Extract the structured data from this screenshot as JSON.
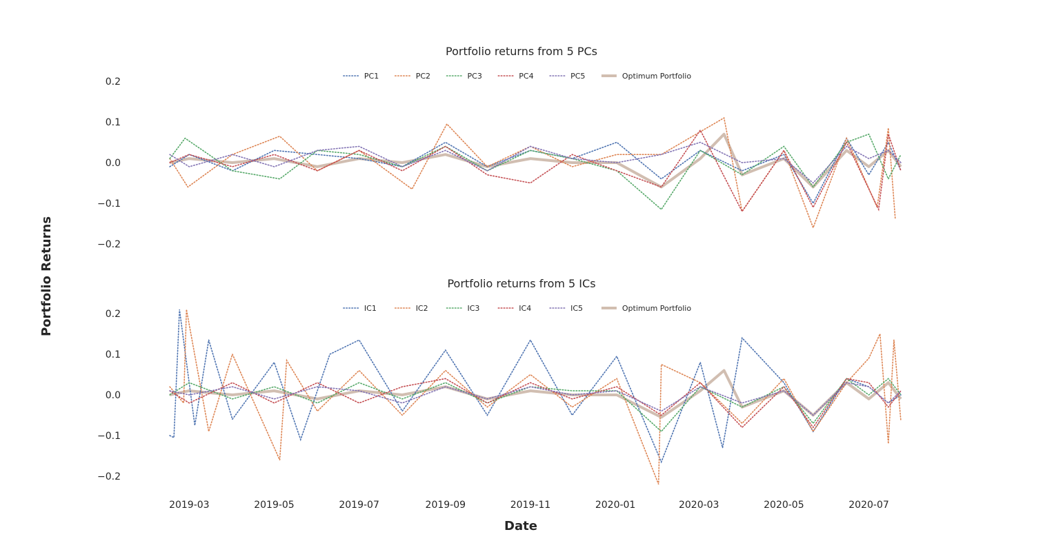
{
  "figure": {
    "xlabel": "Date",
    "ylabel": "Portfolio Returns"
  },
  "colors": {
    "series1": "#4c72b0",
    "series2": "#dd8452",
    "series3": "#55a868",
    "series4": "#c44e52",
    "series5": "#8172b3",
    "optimum": "#c9b3a3"
  },
  "chart_data": [
    {
      "type": "line",
      "title": "Portfolio returns from 5 PCs",
      "xlabel": "Date",
      "ylabel": "Portfolio Returns",
      "xlim": [
        "2019-02-12",
        "2020-07-26"
      ],
      "ylim": [
        -0.2,
        0.2
      ],
      "yticks": [
        -0.2,
        -0.1,
        0.0,
        0.1,
        0.2
      ],
      "ytick_labels": [
        "−0.2",
        "−0.1",
        "0.0",
        "0.1",
        "0.2"
      ],
      "xticks": [
        "2019-03-01",
        "2019-05-01",
        "2019-07-01",
        "2019-09-01",
        "2019-11-01",
        "2020-01-01",
        "2020-03-01",
        "2020-05-01",
        "2020-07-01"
      ],
      "xtick_labels": [
        "2019-03",
        "2019-05",
        "2019-07",
        "2019-09",
        "2019-11",
        "2020-01",
        "2020-03",
        "2020-05",
        "2020-07"
      ],
      "grid": false,
      "legend": "top-center",
      "series": [
        {
          "name": "PC1",
          "style": "dotted",
          "x": [
            "2019-02-15",
            "2019-03-01",
            "2019-04-01",
            "2019-05-01",
            "2019-06-01",
            "2019-07-01",
            "2019-08-01",
            "2019-09-01",
            "2019-10-01",
            "2019-11-01",
            "2019-12-01",
            "2020-01-02",
            "2020-02-03",
            "2020-03-02",
            "2020-04-01",
            "2020-05-01",
            "2020-05-22",
            "2020-06-15",
            "2020-07-01",
            "2020-07-15",
            "2020-07-24"
          ],
          "values": [
            -0.01,
            0.02,
            -0.02,
            0.03,
            0.02,
            0.01,
            -0.01,
            0.05,
            -0.01,
            0.03,
            0.01,
            0.05,
            -0.04,
            0.03,
            -0.02,
            0.02,
            -0.1,
            0.06,
            -0.03,
            0.05,
            -0.02
          ]
        },
        {
          "name": "PC2",
          "style": "dotted",
          "x": [
            "2019-02-15",
            "2019-02-28",
            "2019-04-01",
            "2019-05-05",
            "2019-06-01",
            "2019-07-01",
            "2019-08-08",
            "2019-09-02",
            "2019-10-01",
            "2019-11-01",
            "2019-12-01",
            "2020-01-02",
            "2020-02-03",
            "2020-03-19",
            "2020-04-01",
            "2020-05-01",
            "2020-05-22",
            "2020-06-15",
            "2020-07-07",
            "2020-07-15",
            "2020-07-20"
          ],
          "values": [
            0.01,
            -0.06,
            0.02,
            0.065,
            -0.02,
            0.03,
            -0.065,
            0.095,
            -0.01,
            0.04,
            -0.01,
            0.02,
            0.02,
            0.11,
            -0.12,
            0.03,
            -0.16,
            0.06,
            -0.11,
            0.085,
            -0.14
          ]
        },
        {
          "name": "PC3",
          "style": "dotted",
          "x": [
            "2019-02-15",
            "2019-02-26",
            "2019-04-01",
            "2019-05-05",
            "2019-06-01",
            "2019-07-01",
            "2019-08-01",
            "2019-09-01",
            "2019-10-01",
            "2019-11-01",
            "2019-12-01",
            "2020-01-02",
            "2020-02-03",
            "2020-03-02",
            "2020-04-01",
            "2020-05-01",
            "2020-05-22",
            "2020-06-15",
            "2020-07-01",
            "2020-07-15",
            "2020-07-24"
          ],
          "values": [
            0.01,
            0.06,
            -0.02,
            -0.04,
            0.03,
            0.02,
            -0.01,
            0.04,
            -0.02,
            0.03,
            0.01,
            -0.02,
            -0.115,
            0.03,
            -0.03,
            0.04,
            -0.06,
            0.05,
            0.07,
            -0.04,
            0.02
          ]
        },
        {
          "name": "PC4",
          "style": "dotted",
          "x": [
            "2019-02-15",
            "2019-03-01",
            "2019-04-01",
            "2019-05-01",
            "2019-06-01",
            "2019-07-01",
            "2019-08-01",
            "2019-09-01",
            "2019-10-01",
            "2019-11-01",
            "2019-12-01",
            "2020-01-02",
            "2020-02-03",
            "2020-03-02",
            "2020-04-01",
            "2020-05-01",
            "2020-05-22",
            "2020-06-15",
            "2020-07-08",
            "2020-07-15",
            "2020-07-24"
          ],
          "values": [
            0.0,
            0.02,
            -0.01,
            0.02,
            -0.02,
            0.03,
            -0.02,
            0.04,
            -0.03,
            -0.05,
            0.02,
            -0.02,
            -0.06,
            0.08,
            -0.12,
            0.03,
            -0.11,
            0.05,
            -0.115,
            0.07,
            -0.02
          ]
        },
        {
          "name": "PC5",
          "style": "dotted",
          "x": [
            "2019-02-15",
            "2019-03-01",
            "2019-04-01",
            "2019-05-01",
            "2019-06-01",
            "2019-07-01",
            "2019-08-01",
            "2019-09-01",
            "2019-10-01",
            "2019-11-01",
            "2019-12-01",
            "2020-01-02",
            "2020-02-03",
            "2020-03-02",
            "2020-04-01",
            "2020-05-01",
            "2020-05-22",
            "2020-06-15",
            "2020-07-01",
            "2020-07-15",
            "2020-07-24"
          ],
          "values": [
            0.02,
            -0.01,
            0.02,
            -0.01,
            0.03,
            0.04,
            -0.01,
            0.03,
            -0.02,
            0.04,
            0.01,
            0.0,
            0.02,
            0.05,
            0.0,
            0.01,
            -0.05,
            0.04,
            0.01,
            0.03,
            0.0
          ]
        },
        {
          "name": "Optimum Portfolio",
          "style": "solid",
          "x": [
            "2019-02-15",
            "2019-03-01",
            "2019-04-01",
            "2019-05-01",
            "2019-06-01",
            "2019-07-01",
            "2019-08-01",
            "2019-09-01",
            "2019-10-01",
            "2019-11-01",
            "2019-12-01",
            "2020-01-02",
            "2020-02-03",
            "2020-03-02",
            "2020-03-19",
            "2020-04-01",
            "2020-05-01",
            "2020-05-22",
            "2020-06-15",
            "2020-07-01",
            "2020-07-15",
            "2020-07-24"
          ],
          "values": [
            0.0,
            0.01,
            0.0,
            0.01,
            -0.01,
            0.01,
            0.0,
            0.02,
            -0.01,
            0.01,
            0.0,
            0.0,
            -0.06,
            0.01,
            0.07,
            -0.03,
            0.01,
            -0.06,
            0.03,
            -0.01,
            0.03,
            -0.01
          ]
        }
      ]
    },
    {
      "type": "line",
      "title": "Portfolio returns from 5 ICs",
      "xlabel": "Date",
      "ylabel": "Portfolio Returns",
      "xlim": [
        "2019-02-12",
        "2020-07-26"
      ],
      "ylim": [
        -0.2,
        0.2
      ],
      "yticks": [
        -0.2,
        -0.1,
        0.0,
        0.1,
        0.2
      ],
      "ytick_labels": [
        "−0.2",
        "−0.1",
        "0.0",
        "0.1",
        "0.2"
      ],
      "xticks": [
        "2019-03-01",
        "2019-05-01",
        "2019-07-01",
        "2019-09-01",
        "2019-11-01",
        "2020-01-01",
        "2020-03-01",
        "2020-05-01",
        "2020-07-01"
      ],
      "xtick_labels": [
        "2019-03",
        "2019-05",
        "2019-07",
        "2019-09",
        "2019-11",
        "2020-01",
        "2020-03",
        "2020-05",
        "2020-07"
      ],
      "grid": false,
      "legend": "top-center",
      "series": [
        {
          "name": "IC1",
          "style": "dotted",
          "x": [
            "2019-02-15",
            "2019-02-18",
            "2019-02-22",
            "2019-03-05",
            "2019-03-15",
            "2019-04-01",
            "2019-05-01",
            "2019-05-20",
            "2019-06-10",
            "2019-07-01",
            "2019-08-01",
            "2019-09-01",
            "2019-10-01",
            "2019-11-01",
            "2019-12-01",
            "2020-01-02",
            "2020-02-03",
            "2020-03-02",
            "2020-03-18",
            "2020-04-01",
            "2020-05-01",
            "2020-05-22",
            "2020-06-15",
            "2020-07-01",
            "2020-07-15",
            "2020-07-24"
          ],
          "values": [
            -0.1,
            -0.105,
            0.21,
            -0.075,
            0.135,
            -0.06,
            0.08,
            -0.11,
            0.1,
            0.135,
            -0.04,
            0.11,
            -0.05,
            0.135,
            -0.05,
            0.095,
            -0.165,
            0.08,
            -0.13,
            0.14,
            0.03,
            -0.09,
            0.04,
            0.02,
            -0.02,
            0.0
          ]
        },
        {
          "name": "IC2",
          "style": "dotted",
          "x": [
            "2019-02-15",
            "2019-02-25",
            "2019-02-27",
            "2019-03-15",
            "2019-04-01",
            "2019-05-05",
            "2019-05-10",
            "2019-06-01",
            "2019-07-01",
            "2019-08-01",
            "2019-09-01",
            "2019-10-01",
            "2019-11-01",
            "2019-12-01",
            "2020-01-02",
            "2020-02-01",
            "2020-02-03",
            "2020-03-02",
            "2020-04-01",
            "2020-05-01",
            "2020-05-22",
            "2020-06-15",
            "2020-07-01",
            "2020-07-09",
            "2020-07-15",
            "2020-07-19",
            "2020-07-24"
          ],
          "values": [
            0.02,
            -0.02,
            0.21,
            -0.09,
            0.1,
            -0.16,
            0.085,
            -0.04,
            0.06,
            -0.05,
            0.06,
            -0.03,
            0.05,
            -0.03,
            0.04,
            -0.22,
            0.075,
            0.03,
            -0.07,
            0.04,
            -0.09,
            0.03,
            0.09,
            0.15,
            -0.12,
            0.135,
            -0.065
          ]
        },
        {
          "name": "IC3",
          "style": "dotted",
          "x": [
            "2019-02-15",
            "2019-03-01",
            "2019-04-01",
            "2019-05-01",
            "2019-06-01",
            "2019-07-01",
            "2019-08-01",
            "2019-09-01",
            "2019-10-01",
            "2019-11-01",
            "2019-12-01",
            "2020-01-02",
            "2020-02-03",
            "2020-03-02",
            "2020-04-01",
            "2020-05-01",
            "2020-05-22",
            "2020-06-15",
            "2020-07-01",
            "2020-07-15",
            "2020-07-24"
          ],
          "values": [
            0.0,
            0.03,
            -0.01,
            0.02,
            -0.02,
            0.03,
            -0.01,
            0.03,
            -0.02,
            0.02,
            0.01,
            0.01,
            -0.09,
            0.02,
            -0.03,
            0.02,
            -0.07,
            0.04,
            0.0,
            0.04,
            0.0
          ]
        },
        {
          "name": "IC4",
          "style": "dotted",
          "x": [
            "2019-02-15",
            "2019-03-01",
            "2019-04-01",
            "2019-05-01",
            "2019-06-01",
            "2019-07-01",
            "2019-08-01",
            "2019-09-01",
            "2019-10-01",
            "2019-11-01",
            "2019-12-01",
            "2020-01-02",
            "2020-02-03",
            "2020-03-02",
            "2020-04-01",
            "2020-05-01",
            "2020-05-22",
            "2020-06-15",
            "2020-07-01",
            "2020-07-15",
            "2020-07-24"
          ],
          "values": [
            0.01,
            -0.02,
            0.03,
            -0.02,
            0.03,
            -0.02,
            0.02,
            0.04,
            -0.02,
            0.03,
            -0.01,
            0.02,
            -0.05,
            0.03,
            -0.08,
            0.02,
            -0.08,
            0.04,
            0.03,
            -0.03,
            0.01
          ]
        },
        {
          "name": "IC5",
          "style": "dotted",
          "x": [
            "2019-02-15",
            "2019-03-01",
            "2019-04-01",
            "2019-05-01",
            "2019-06-01",
            "2019-07-01",
            "2019-08-01",
            "2019-09-01",
            "2019-10-01",
            "2019-11-01",
            "2019-12-01",
            "2020-01-02",
            "2020-02-03",
            "2020-03-02",
            "2020-04-01",
            "2020-05-01",
            "2020-05-22",
            "2020-06-15",
            "2020-07-01",
            "2020-07-15",
            "2020-07-24"
          ],
          "values": [
            0.01,
            0.0,
            0.02,
            -0.01,
            0.02,
            0.01,
            -0.02,
            0.02,
            -0.01,
            0.02,
            0.0,
            0.01,
            -0.04,
            0.02,
            -0.02,
            0.01,
            -0.05,
            0.03,
            0.02,
            -0.02,
            0.01
          ]
        },
        {
          "name": "Optimum Portfolio",
          "style": "solid",
          "x": [
            "2019-02-15",
            "2019-03-01",
            "2019-04-01",
            "2019-05-01",
            "2019-06-01",
            "2019-07-01",
            "2019-08-01",
            "2019-09-01",
            "2019-10-01",
            "2019-11-01",
            "2019-12-01",
            "2020-01-02",
            "2020-02-03",
            "2020-03-02",
            "2020-03-19",
            "2020-04-01",
            "2020-05-01",
            "2020-05-22",
            "2020-06-15",
            "2020-07-01",
            "2020-07-15",
            "2020-07-24"
          ],
          "values": [
            0.0,
            0.01,
            0.0,
            0.01,
            -0.01,
            0.01,
            0.0,
            0.02,
            -0.01,
            0.01,
            0.0,
            0.0,
            -0.055,
            0.01,
            0.06,
            -0.03,
            0.01,
            -0.05,
            0.03,
            -0.01,
            0.03,
            -0.01
          ]
        }
      ]
    }
  ]
}
